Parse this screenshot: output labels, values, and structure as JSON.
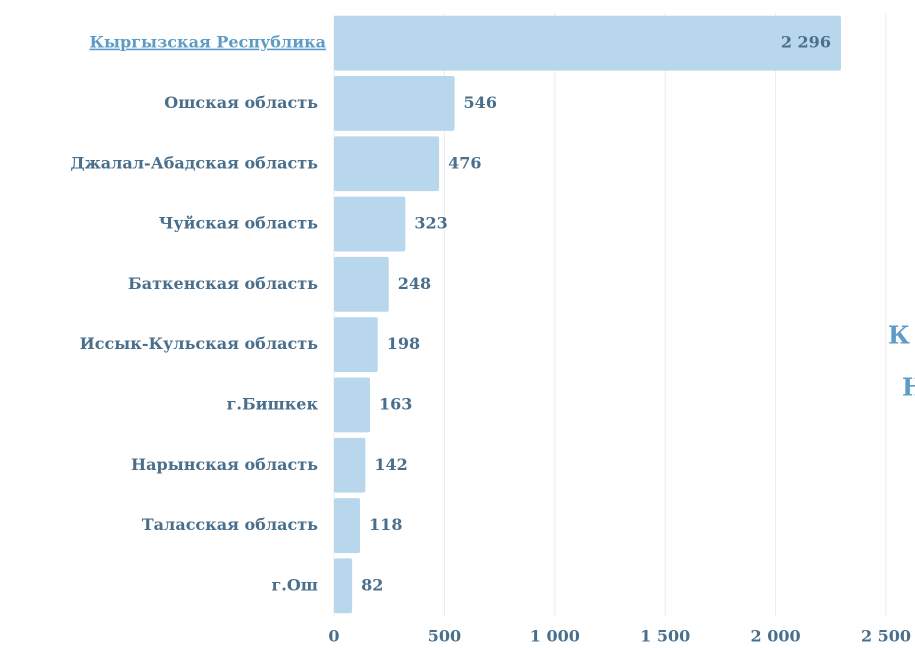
{
  "chart_data": {
    "type": "bar",
    "orientation": "horizontal",
    "categories": [
      "Кыргызская Республика",
      "Ошская область",
      "Джалал-Абадская область",
      "Чуйская область",
      "Баткенская область",
      "Иссык-Кульская область",
      "г.Бишкек",
      "Нарынская область",
      "Таласская область",
      "г.Ош"
    ],
    "values": [
      2296,
      546,
      476,
      323,
      248,
      198,
      163,
      142,
      118,
      82
    ],
    "value_labels": [
      "2 296",
      "546",
      "476",
      "323",
      "248",
      "198",
      "163",
      "142",
      "118",
      "82"
    ],
    "color": "#b9d7ec",
    "xlim": [
      0,
      2500
    ],
    "xticks": [
      0,
      500,
      {
        "value": 1000,
        "label": "1 000"
      },
      {
        "value": 1500,
        "label": "1 500"
      },
      {
        "value": 2000,
        "label": "2 000"
      },
      {
        "value": 2500,
        "label": "2 500"
      }
    ],
    "grid": true,
    "annotations": [
      "К",
      "Н"
    ]
  }
}
